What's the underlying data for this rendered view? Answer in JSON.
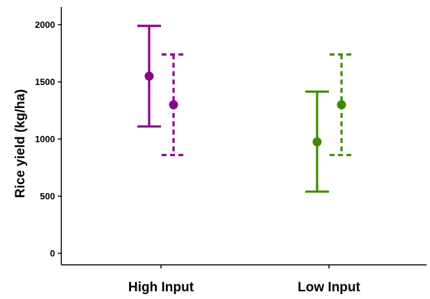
{
  "chart_data": {
    "type": "errorbar",
    "title": "",
    "xlabel": "",
    "ylabel": "Rice yield (kg/ha)",
    "ylim": [
      0,
      2000
    ],
    "y_ticks": [
      0,
      500,
      1000,
      1500,
      2000
    ],
    "categories": [
      "High Input",
      "Low Input"
    ],
    "grid": false,
    "legend": "none",
    "series": [
      {
        "line_style": "solid",
        "points": [
          {
            "category": "High Input",
            "mean": 1550,
            "lower": 1110,
            "upper": 1990,
            "color": "#8B008B"
          },
          {
            "category": "Low Input",
            "mean": 975,
            "lower": 540,
            "upper": 1415,
            "color": "#3F8A00"
          }
        ]
      },
      {
        "line_style": "dashed",
        "points": [
          {
            "category": "High Input",
            "mean": 1300,
            "lower": 860,
            "upper": 1740,
            "color": "#8B008B"
          },
          {
            "category": "Low Input",
            "mean": 1300,
            "lower": 860,
            "upper": 1740,
            "color": "#3F8A00"
          }
        ]
      }
    ]
  }
}
